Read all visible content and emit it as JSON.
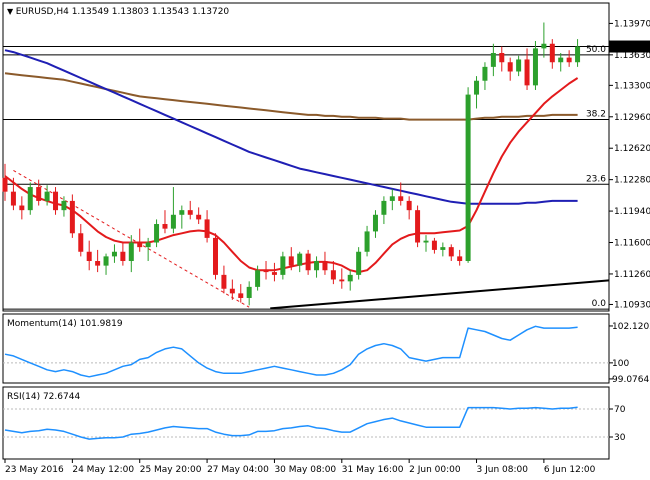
{
  "chart_data": [
    {
      "type": "candlestick",
      "symbol_label": "EURUSD,H4",
      "ohlc_label": "1.13549 1.13803 1.13543 1.13720",
      "current_price": "1.13720",
      "ylim": [
        1.1087,
        1.1418
      ],
      "y_ticks": [
        "1.13970",
        "1.13630",
        "1.13300",
        "1.12960",
        "1.12620",
        "1.12280",
        "1.11940",
        "1.11600",
        "1.11260",
        "1.10930"
      ],
      "y_tick_values": [
        1.1397,
        1.1363,
        1.133,
        1.1296,
        1.1262,
        1.1228,
        1.1194,
        1.116,
        1.1126,
        1.1093
      ],
      "fib_levels": [
        {
          "label": "50.0",
          "value": 1.1363
        },
        {
          "label": "38.2",
          "value": 1.1293
        },
        {
          "label": "23.6",
          "value": 1.1223
        },
        {
          "label": "0.0",
          "value": 1.1088
        }
      ],
      "extra_hline": 1.1372,
      "candles": [
        [
          1.123,
          1.1245,
          1.1205,
          1.1215
        ],
        [
          1.1215,
          1.123,
          1.1195,
          1.12
        ],
        [
          1.12,
          1.121,
          1.1185,
          1.1195
        ],
        [
          1.1195,
          1.1225,
          1.119,
          1.122
        ],
        [
          1.122,
          1.1228,
          1.12,
          1.1205
        ],
        [
          1.1205,
          1.1222,
          1.12,
          1.1215
        ],
        [
          1.1215,
          1.122,
          1.119,
          1.1195
        ],
        [
          1.1195,
          1.121,
          1.1188,
          1.1205
        ],
        [
          1.1205,
          1.1212,
          1.1165,
          1.117
        ],
        [
          1.117,
          1.118,
          1.1145,
          1.115
        ],
        [
          1.115,
          1.1162,
          1.113,
          1.114
        ],
        [
          1.114,
          1.1152,
          1.1128,
          1.1135
        ],
        [
          1.1135,
          1.1148,
          1.1125,
          1.1145
        ],
        [
          1.1145,
          1.1158,
          1.1138,
          1.115
        ],
        [
          1.115,
          1.116,
          1.1135,
          1.114
        ],
        [
          1.114,
          1.1168,
          1.1128,
          1.116
        ],
        [
          1.116,
          1.1175,
          1.115,
          1.1155
        ],
        [
          1.1155,
          1.1165,
          1.114,
          1.116
        ],
        [
          1.116,
          1.1185,
          1.1155,
          1.118
        ],
        [
          1.118,
          1.1195,
          1.117,
          1.1175
        ],
        [
          1.1175,
          1.122,
          1.117,
          1.119
        ],
        [
          1.119,
          1.12,
          1.1175,
          1.1195
        ],
        [
          1.1195,
          1.1205,
          1.1185,
          1.119
        ],
        [
          1.119,
          1.1198,
          1.118,
          1.1185
        ],
        [
          1.1185,
          1.1195,
          1.116,
          1.1165
        ],
        [
          1.1165,
          1.117,
          1.112,
          1.1125
        ],
        [
          1.1125,
          1.1135,
          1.1105,
          1.111
        ],
        [
          1.111,
          1.112,
          1.1098,
          1.1105
        ],
        [
          1.1105,
          1.1115,
          1.1095,
          1.11
        ],
        [
          1.11,
          1.1118,
          1.1092,
          1.1112
        ],
        [
          1.1112,
          1.1135,
          1.1108,
          1.113
        ],
        [
          1.113,
          1.114,
          1.112,
          1.1128
        ],
        [
          1.1128,
          1.1138,
          1.1118,
          1.1125
        ],
        [
          1.1125,
          1.115,
          1.112,
          1.1145
        ],
        [
          1.1145,
          1.1155,
          1.113,
          1.1135
        ],
        [
          1.1135,
          1.115,
          1.1128,
          1.1148
        ],
        [
          1.1148,
          1.1152,
          1.1125,
          1.113
        ],
        [
          1.113,
          1.1145,
          1.1122,
          1.114
        ],
        [
          1.114,
          1.115,
          1.1125,
          1.113
        ],
        [
          1.113,
          1.114,
          1.1115,
          1.112
        ],
        [
          1.112,
          1.1132,
          1.111,
          1.1118
        ],
        [
          1.1118,
          1.113,
          1.1108,
          1.1125
        ],
        [
          1.1125,
          1.1155,
          1.112,
          1.115
        ],
        [
          1.115,
          1.1178,
          1.1145,
          1.1172
        ],
        [
          1.1172,
          1.1195,
          1.1165,
          1.119
        ],
        [
          1.119,
          1.121,
          1.118,
          1.1205
        ],
        [
          1.1205,
          1.1218,
          1.1195,
          1.121
        ],
        [
          1.121,
          1.1225,
          1.12,
          1.1205
        ],
        [
          1.1205,
          1.121,
          1.1185,
          1.1195
        ],
        [
          1.1195,
          1.12,
          1.1155,
          1.116
        ],
        [
          1.116,
          1.1168,
          1.115,
          1.1162
        ],
        [
          1.1162,
          1.1165,
          1.1148,
          1.1152
        ],
        [
          1.1152,
          1.116,
          1.1145,
          1.1155
        ],
        [
          1.1155,
          1.1158,
          1.114,
          1.1145
        ],
        [
          1.1145,
          1.1152,
          1.1135,
          1.114
        ],
        [
          1.114,
          1.1328,
          1.1138,
          1.132
        ],
        [
          1.132,
          1.134,
          1.1305,
          1.1335
        ],
        [
          1.1335,
          1.1355,
          1.1325,
          1.135
        ],
        [
          1.135,
          1.1375,
          1.134,
          1.1365
        ],
        [
          1.1365,
          1.1372,
          1.1345,
          1.1355
        ],
        [
          1.1355,
          1.136,
          1.1335,
          1.1345
        ],
        [
          1.1345,
          1.1362,
          1.134,
          1.1358
        ],
        [
          1.1358,
          1.137,
          1.1325,
          1.133
        ],
        [
          1.133,
          1.1378,
          1.1325,
          1.137
        ],
        [
          1.137,
          1.1398,
          1.136,
          1.1375
        ],
        [
          1.1375,
          1.138,
          1.1348,
          1.1355
        ],
        [
          1.1355,
          1.1365,
          1.1345,
          1.136
        ],
        [
          1.136,
          1.1368,
          1.135,
          1.1355
        ],
        [
          1.1355,
          1.138,
          1.135,
          1.1372
        ]
      ],
      "sma_red": [
        1.1232,
        1.1225,
        1.1218,
        1.1212,
        1.1208,
        1.1205,
        1.1202,
        1.12,
        1.1195,
        1.1188,
        1.118,
        1.1172,
        1.1166,
        1.1162,
        1.116,
        1.116,
        1.116,
        1.116,
        1.1162,
        1.1165,
        1.1168,
        1.117,
        1.1172,
        1.1173,
        1.1172,
        1.1168,
        1.116,
        1.115,
        1.114,
        1.1133,
        1.113,
        1.113,
        1.113,
        1.1132,
        1.1134,
        1.1136,
        1.1138,
        1.1139,
        1.1139,
        1.1138,
        1.1135,
        1.113,
        1.1128,
        1.113,
        1.1138,
        1.1148,
        1.1158,
        1.1164,
        1.1168,
        1.117,
        1.117,
        1.117,
        1.1171,
        1.1172,
        1.1173,
        1.1178,
        1.1195,
        1.1215,
        1.1235,
        1.1253,
        1.1268,
        1.128,
        1.129,
        1.13,
        1.131,
        1.1318,
        1.1325,
        1.1332,
        1.1338
      ],
      "sma_blue": [
        1.1368,
        1.1366,
        1.1363,
        1.136,
        1.1357,
        1.1354,
        1.135,
        1.1346,
        1.1342,
        1.1338,
        1.1334,
        1.133,
        1.1326,
        1.1322,
        1.1318,
        1.1314,
        1.131,
        1.1306,
        1.1302,
        1.1298,
        1.1294,
        1.129,
        1.1286,
        1.1282,
        1.1278,
        1.1274,
        1.127,
        1.1266,
        1.1262,
        1.1258,
        1.1255,
        1.1252,
        1.1249,
        1.1246,
        1.1243,
        1.124,
        1.1238,
        1.1236,
        1.1234,
        1.1232,
        1.123,
        1.1228,
        1.1226,
        1.1224,
        1.1222,
        1.122,
        1.1218,
        1.1216,
        1.1214,
        1.1212,
        1.121,
        1.1208,
        1.1206,
        1.1204,
        1.1203,
        1.1202,
        1.1202,
        1.1202,
        1.1202,
        1.1202,
        1.1202,
        1.1202,
        1.1203,
        1.1203,
        1.1204,
        1.1205,
        1.1205,
        1.1205,
        1.1205
      ],
      "sma_brown": [
        1.1343,
        1.1342,
        1.1341,
        1.134,
        1.1339,
        1.1338,
        1.1337,
        1.1336,
        1.1334,
        1.1332,
        1.133,
        1.1328,
        1.1326,
        1.1324,
        1.1322,
        1.132,
        1.1318,
        1.1317,
        1.1316,
        1.1315,
        1.1314,
        1.1313,
        1.1312,
        1.1311,
        1.131,
        1.1309,
        1.1308,
        1.1307,
        1.1306,
        1.1305,
        1.1304,
        1.1303,
        1.1302,
        1.1301,
        1.13,
        1.1299,
        1.1298,
        1.1298,
        1.1297,
        1.1297,
        1.1296,
        1.1296,
        1.1295,
        1.1295,
        1.1295,
        1.1294,
        1.1294,
        1.1294,
        1.1293,
        1.1293,
        1.1293,
        1.1293,
        1.1293,
        1.1293,
        1.1293,
        1.1293,
        1.1294,
        1.1295,
        1.1295,
        1.1296,
        1.1296,
        1.1296,
        1.1297,
        1.1297,
        1.1297,
        1.1298,
        1.1298,
        1.1298,
        1.1298
      ],
      "trend_lower": [
        [
          22,
          1.1087
        ],
        [
          68,
          1.1119
        ]
      ],
      "trend_dashed": [
        [
          1,
          1.1238
        ],
        [
          29,
          1.109
        ]
      ]
    },
    {
      "type": "line",
      "label": "Momentum(14) 101.9819",
      "ylim": [
        98.9,
        102.75
      ],
      "y_ticks": [
        "102.1202",
        "100",
        "99.0764"
      ],
      "y_tick_values": [
        102.1202,
        100,
        99.0764
      ],
      "values": [
        100.5,
        100.4,
        100.2,
        100.0,
        99.8,
        99.6,
        99.5,
        99.6,
        99.5,
        99.3,
        99.2,
        99.3,
        99.4,
        99.6,
        99.8,
        99.9,
        100.2,
        100.3,
        100.6,
        100.8,
        100.9,
        100.8,
        100.4,
        100.0,
        99.7,
        99.5,
        99.4,
        99.4,
        99.4,
        99.5,
        99.6,
        99.7,
        99.8,
        99.7,
        99.6,
        99.5,
        99.4,
        99.3,
        99.3,
        99.4,
        99.6,
        99.9,
        100.5,
        100.8,
        101.0,
        101.1,
        101.0,
        100.8,
        100.3,
        100.2,
        100.1,
        100.2,
        100.3,
        100.3,
        100.3,
        102.0,
        101.9,
        101.8,
        101.6,
        101.4,
        101.3,
        101.6,
        101.9,
        102.1,
        102.0,
        102.0,
        102.0,
        102.0,
        102.05
      ]
    },
    {
      "type": "line",
      "label": "RSI(14) 72.6744",
      "ylim": [
        0,
        100
      ],
      "y_ticks": [
        "70",
        "30"
      ],
      "y_tick_values": [
        70,
        30
      ],
      "values": [
        40,
        38,
        36,
        38,
        39,
        41,
        40,
        38,
        34,
        30,
        27,
        28,
        29,
        29,
        30,
        34,
        35,
        37,
        40,
        43,
        45,
        44,
        43,
        42,
        42,
        37,
        34,
        32,
        32,
        33,
        38,
        38,
        39,
        42,
        43,
        45,
        46,
        43,
        42,
        39,
        37,
        37,
        43,
        49,
        52,
        55,
        57,
        53,
        50,
        47,
        44,
        44,
        44,
        44,
        44,
        72,
        72,
        72,
        72,
        71,
        70,
        71,
        71,
        72,
        71,
        70,
        71,
        71,
        72.5
      ]
    }
  ],
  "x_axis": {
    "labels": [
      "23 May 2016",
      "24 May 12:00",
      "25 May 20:00",
      "27 May 04:00",
      "30 May 08:00",
      "31 May 16:00",
      "2 Jun 00:00",
      "3 Jun 08:00",
      "6 Jun 12:00"
    ],
    "label_bars": [
      0,
      8,
      16,
      24,
      32,
      40,
      48,
      56,
      64
    ]
  },
  "colors": {
    "bull": "#2ca02c",
    "bear": "#e31a1c",
    "sma_red": "#e31a1c",
    "sma_blue": "#1f1fb4",
    "sma_brown": "#8b5a2b",
    "indicator": "#1e90ff",
    "trendline": "#000000"
  }
}
